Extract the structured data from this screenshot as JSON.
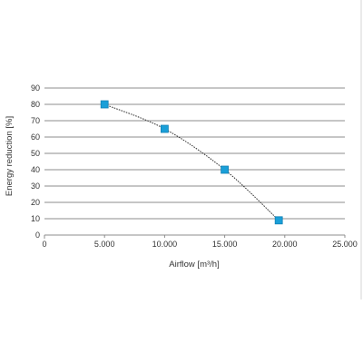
{
  "chart_data": {
    "type": "scatter",
    "xlabel": "Airflow [m³/h]",
    "ylabel": "Energy reduction [%]",
    "xlim": [
      0,
      25000
    ],
    "ylim": [
      0,
      90
    ],
    "x_ticks": [
      0,
      5000,
      10000,
      15000,
      20000,
      25000
    ],
    "x_tick_labels": [
      "0",
      "5.000",
      "10.000",
      "15.000",
      "20.000",
      "25.000"
    ],
    "y_ticks": [
      0,
      10,
      20,
      30,
      40,
      50,
      60,
      70,
      80,
      90
    ],
    "y_tick_labels": [
      "0",
      "10",
      "20",
      "30",
      "40",
      "50",
      "60",
      "70",
      "80",
      "90"
    ],
    "grid": "horizontal",
    "trendline": "dotted curve",
    "series": [
      {
        "x": [
          5000,
          10000,
          15000,
          19500
        ],
        "y": [
          80,
          65,
          40,
          9
        ],
        "marker": "square",
        "color": "#1a9fd8"
      }
    ]
  },
  "colors": {
    "marker": "#1a9fd8",
    "marker_edge": "#1281b5",
    "grid": "#8c8c8c",
    "text": "#333333"
  }
}
